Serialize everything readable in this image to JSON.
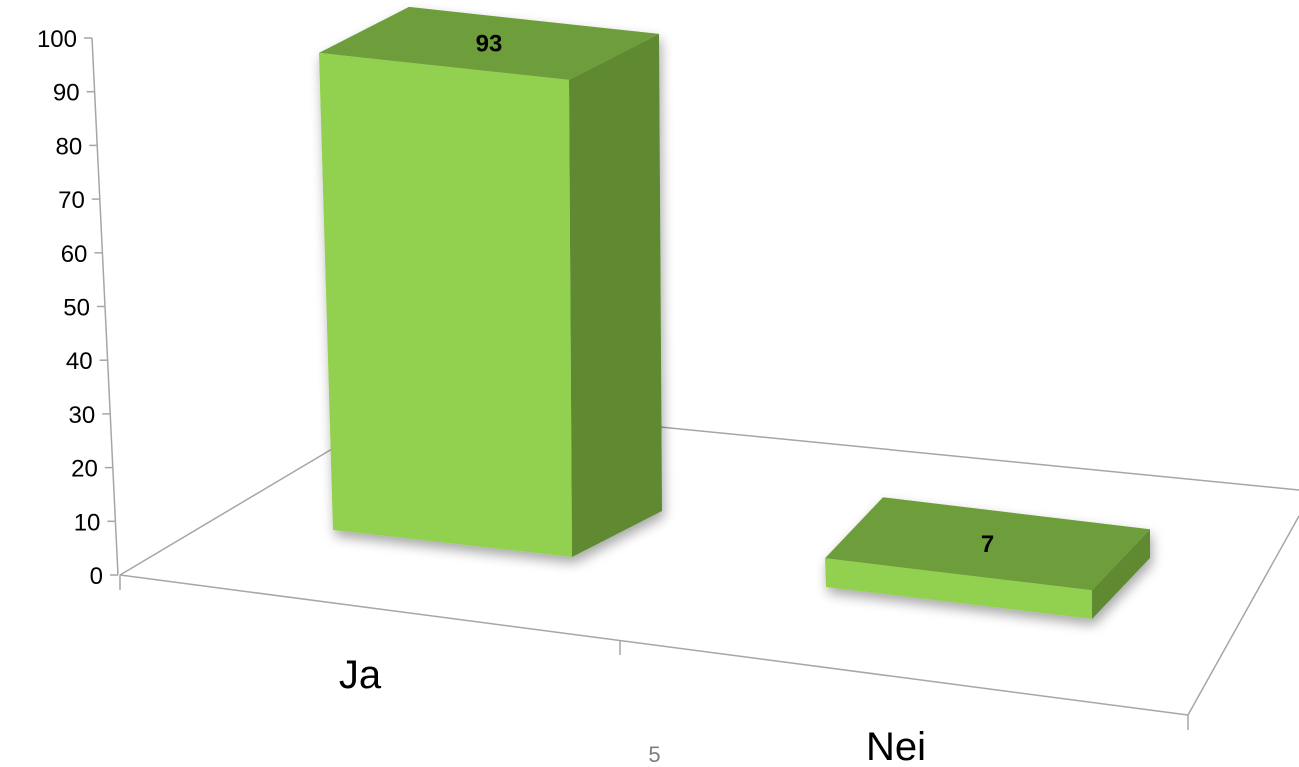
{
  "chart_data": {
    "type": "bar",
    "style": "3d-column",
    "categories": [
      "Ja",
      "Nei"
    ],
    "values": [
      93,
      7
    ],
    "data_labels": [
      "93",
      "7"
    ],
    "yticks": [
      0,
      10,
      20,
      30,
      40,
      50,
      60,
      70,
      80,
      90,
      100
    ],
    "ylim": [
      0,
      100
    ],
    "title": "",
    "xlabel": "",
    "ylabel": "",
    "grid": false,
    "legend": "none",
    "colors": {
      "bar_front": "#92d050",
      "bar_top": "#6e9e3a",
      "bar_side": "#5e8a30",
      "axis": "#a6a6a6"
    }
  },
  "page_number": "5"
}
